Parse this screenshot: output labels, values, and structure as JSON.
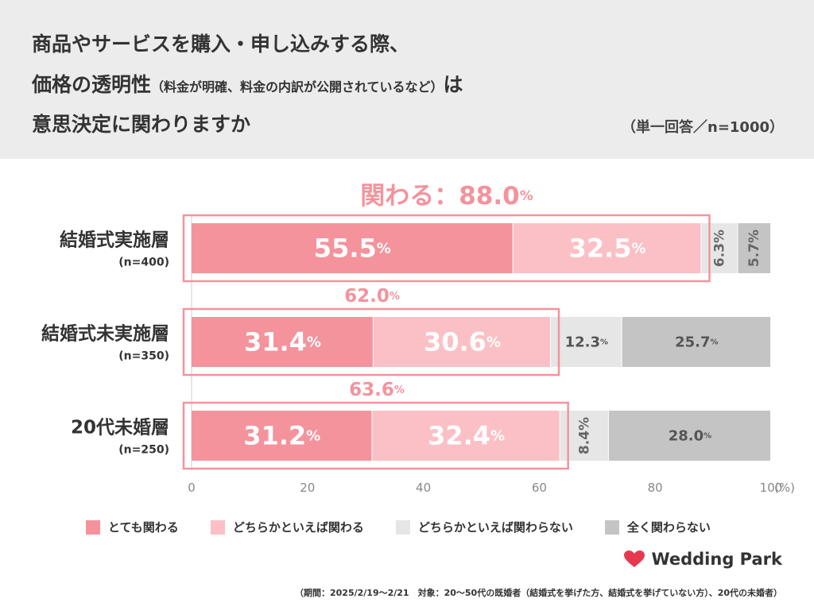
{
  "header": {
    "title_line1": "商品やサービスを購入・申し込みする際、",
    "title_line2_main": "価格の透明性",
    "title_line2_small": "（料金が明確、料金の内訳が公開されているなど）",
    "title_line2_end": "は",
    "title_line3": "意思決定に関わりますか",
    "note": "（単一回答／n=1000）"
  },
  "chart_data": {
    "type": "bar",
    "orientation": "horizontal-stacked",
    "xlim": [
      0,
      100
    ],
    "x_ticks": [
      "0",
      "20",
      "40",
      "60",
      "80",
      "100"
    ],
    "x_unit": "(%)",
    "categories": [
      {
        "name": "結婚式実施層",
        "n": "(n=400)"
      },
      {
        "name": "結婚式未実施層",
        "n": "(n=350)"
      },
      {
        "name": "20代未婚層",
        "n": "(n=250)"
      }
    ],
    "series": [
      {
        "name": "とても関わる",
        "values": [
          55.5,
          31.4,
          31.2
        ],
        "color": "#f4939c"
      },
      {
        "name": "どちらかといえば関わる",
        "values": [
          32.5,
          30.6,
          32.4
        ],
        "color": "#fbc0c5"
      },
      {
        "name": "どちらかといえば関わらない",
        "values": [
          6.3,
          12.3,
          8.4
        ],
        "color": "#e6e6e6"
      },
      {
        "name": "全く関わらない",
        "values": [
          5.7,
          25.7,
          28.0
        ],
        "color": "#c4c4c4"
      }
    ],
    "totals": [
      {
        "label": "関わる：88.0",
        "unit": "%"
      },
      {
        "label": "62.0",
        "unit": "%"
      },
      {
        "label": "63.6",
        "unit": "%"
      }
    ],
    "value_labels": [
      [
        "55.5",
        "32.5",
        "6.3%",
        "5.7%"
      ],
      [
        "31.4",
        "30.6",
        "12.3",
        "25.7"
      ],
      [
        "31.2",
        "32.4",
        "8.4%",
        "28.0"
      ]
    ]
  },
  "footer": {
    "brand": "Wedding Park",
    "period": "（期間：2025/2/19〜2/21　対象：20〜50代の既婚者（結婚式を挙げた方、結婚式を挙げていない方）、20代の未婚者）"
  }
}
